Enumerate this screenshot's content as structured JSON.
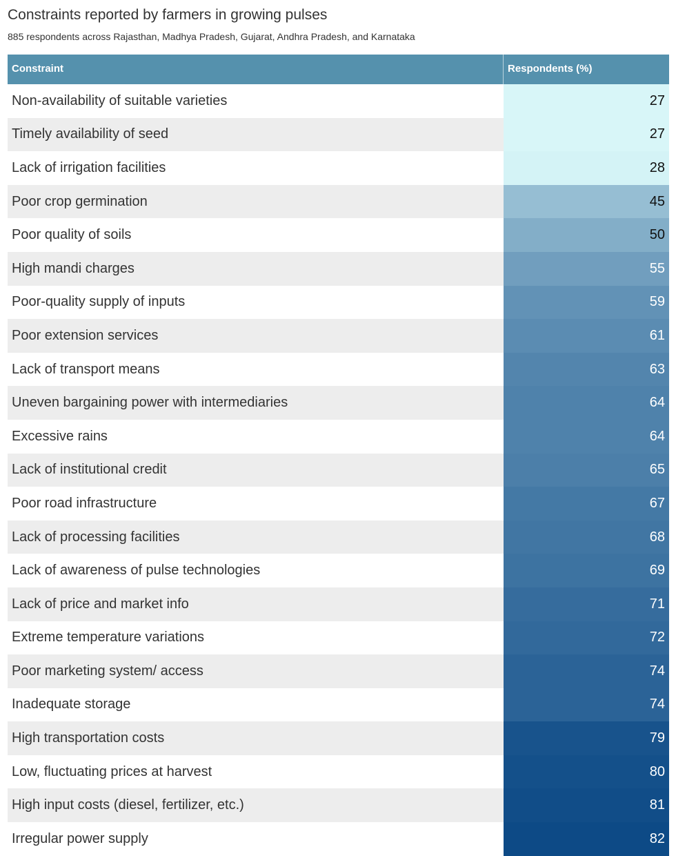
{
  "title": "Constraints reported by farmers in growing pulses",
  "subtitle": "885 respondents across Rajasthan, Madhya Pradesh, Gujarat, Andhra Pradesh, and Karnataka",
  "colors": {
    "header_bg": "#5591ad",
    "row_alt_bg": "#ededed",
    "row_bg": "#ffffff",
    "scale_low": "#d8f6f8",
    "scale_high": "#0d4a86"
  },
  "chart_data": {
    "type": "table",
    "title": "Constraints reported by farmers in growing pulses",
    "subtitle": "885 respondents across Rajasthan, Madhya Pradesh, Gujarat, Andhra Pradesh, and Karnataka",
    "columns": [
      "Constraint",
      "Respondents (%)"
    ],
    "rows": [
      {
        "constraint": "Non-availability of suitable varieties",
        "value": 27
      },
      {
        "constraint": "Timely availability of seed",
        "value": 27
      },
      {
        "constraint": "Lack of irrigation facilities",
        "value": 28
      },
      {
        "constraint": "Poor crop germination",
        "value": 45
      },
      {
        "constraint": "Poor quality of soils",
        "value": 50
      },
      {
        "constraint": "High mandi charges",
        "value": 55
      },
      {
        "constraint": "Poor-quality supply of inputs",
        "value": 59
      },
      {
        "constraint": "Poor extension services",
        "value": 61
      },
      {
        "constraint": "Lack of transport means",
        "value": 63
      },
      {
        "constraint": "Uneven bargaining power with intermediaries",
        "value": 64
      },
      {
        "constraint": "Excessive rains",
        "value": 64
      },
      {
        "constraint": "Lack of institutional credit",
        "value": 65
      },
      {
        "constraint": "Poor road infrastructure",
        "value": 67
      },
      {
        "constraint": "Lack of processing facilities",
        "value": 68
      },
      {
        "constraint": "Lack of awareness of pulse technologies",
        "value": 69
      },
      {
        "constraint": "Lack of price and market info",
        "value": 71
      },
      {
        "constraint": "Extreme temperature variations",
        "value": 72
      },
      {
        "constraint": "Poor marketing system/ access",
        "value": 74
      },
      {
        "constraint": "Inadequate storage",
        "value": 74
      },
      {
        "constraint": "High transportation costs",
        "value": 79
      },
      {
        "constraint": "Low, fluctuating prices at harvest",
        "value": 80
      },
      {
        "constraint": "High input costs (diesel, fertilizer, etc.)",
        "value": 81
      },
      {
        "constraint": "Irregular power supply",
        "value": 82
      }
    ]
  }
}
